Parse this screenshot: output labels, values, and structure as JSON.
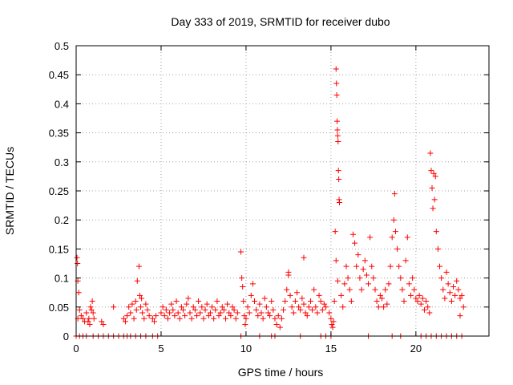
{
  "chart_data": {
    "type": "scatter",
    "title": "Day 333 of 2019, SRMTID for receiver dubo",
    "xlabel": "GPS time / hours",
    "ylabel": "SRMTID / TECUs",
    "xlim": [
      0,
      24.3
    ],
    "ylim": [
      0,
      0.5
    ],
    "grid": true,
    "marker": "plus",
    "series_color": "#ff0000",
    "x_ticks": [
      {
        "value": 0,
        "label": "0"
      },
      {
        "value": 5,
        "label": "5"
      },
      {
        "value": 10,
        "label": "10"
      },
      {
        "value": 15,
        "label": "15"
      },
      {
        "value": 20,
        "label": "20"
      }
    ],
    "y_ticks": [
      {
        "value": 0,
        "label": "0"
      },
      {
        "value": 0.05,
        "label": "0.05"
      },
      {
        "value": 0.1,
        "label": "0.1"
      },
      {
        "value": 0.15,
        "label": "0.15"
      },
      {
        "value": 0.2,
        "label": "0.2"
      },
      {
        "value": 0.25,
        "label": "0.25"
      },
      {
        "value": 0.3,
        "label": "0.3"
      },
      {
        "value": 0.35,
        "label": "0.35"
      },
      {
        "value": 0.4,
        "label": "0.4"
      },
      {
        "value": 0.45,
        "label": "0.45"
      },
      {
        "value": 0.5,
        "label": "0.5"
      }
    ],
    "series": [
      {
        "name": "SRMTID",
        "points": [
          [
            0.05,
            0.135
          ],
          [
            0.08,
            0.125
          ],
          [
            0.1,
            0.095
          ],
          [
            0.15,
            0.075
          ],
          [
            0.2,
            0.045
          ],
          [
            0.1,
            0.03
          ],
          [
            0.3,
            0.035
          ],
          [
            0.4,
            0.03
          ],
          [
            0.5,
            0.025
          ],
          [
            0.6,
            0.04
          ],
          [
            0.7,
            0.025
          ],
          [
            0.75,
            0.03
          ],
          [
            0.85,
            0.05
          ],
          [
            0.9,
            0.045
          ],
          [
            0.95,
            0.06
          ],
          [
            1.0,
            0.04
          ],
          [
            1.05,
            0.03
          ],
          [
            0.8,
            0.02
          ],
          [
            1.5,
            0.025
          ],
          [
            1.6,
            0.02
          ],
          [
            2.2,
            0.05
          ],
          [
            2.8,
            0.03
          ],
          [
            2.9,
            0.025
          ],
          [
            3.0,
            0.035
          ],
          [
            3.1,
            0.05
          ],
          [
            3.2,
            0.04
          ],
          [
            3.3,
            0.055
          ],
          [
            3.4,
            0.03
          ],
          [
            3.5,
            0.06
          ],
          [
            3.55,
            0.045
          ],
          [
            3.6,
            0.095
          ],
          [
            3.7,
            0.12
          ],
          [
            3.75,
            0.07
          ],
          [
            3.8,
            0.05
          ],
          [
            3.85,
            0.065
          ],
          [
            3.9,
            0.04
          ],
          [
            4.0,
            0.03
          ],
          [
            4.1,
            0.055
          ],
          [
            4.2,
            0.045
          ],
          [
            4.3,
            0.035
          ],
          [
            4.5,
            0.03
          ],
          [
            4.6,
            0.025
          ],
          [
            4.7,
            0.035
          ],
          [
            5.0,
            0.04
          ],
          [
            5.1,
            0.05
          ],
          [
            5.2,
            0.035
          ],
          [
            5.3,
            0.045
          ],
          [
            5.4,
            0.03
          ],
          [
            5.5,
            0.04
          ],
          [
            5.6,
            0.055
          ],
          [
            5.7,
            0.045
          ],
          [
            5.8,
            0.035
          ],
          [
            5.9,
            0.06
          ],
          [
            6.0,
            0.04
          ],
          [
            6.1,
            0.03
          ],
          [
            6.2,
            0.05
          ],
          [
            6.3,
            0.045
          ],
          [
            6.4,
            0.035
          ],
          [
            6.5,
            0.055
          ],
          [
            6.6,
            0.065
          ],
          [
            6.7,
            0.04
          ],
          [
            6.8,
            0.03
          ],
          [
            6.9,
            0.05
          ],
          [
            7.0,
            0.045
          ],
          [
            7.1,
            0.035
          ],
          [
            7.2,
            0.06
          ],
          [
            7.3,
            0.04
          ],
          [
            7.4,
            0.05
          ],
          [
            7.5,
            0.03
          ],
          [
            7.6,
            0.045
          ],
          [
            7.7,
            0.055
          ],
          [
            7.8,
            0.035
          ],
          [
            7.9,
            0.04
          ],
          [
            8.0,
            0.05
          ],
          [
            8.1,
            0.03
          ],
          [
            8.2,
            0.045
          ],
          [
            8.3,
            0.06
          ],
          [
            8.4,
            0.035
          ],
          [
            8.5,
            0.04
          ],
          [
            8.6,
            0.05
          ],
          [
            8.7,
            0.045
          ],
          [
            8.8,
            0.03
          ],
          [
            8.9,
            0.055
          ],
          [
            9.0,
            0.04
          ],
          [
            9.1,
            0.035
          ],
          [
            9.2,
            0.05
          ],
          [
            9.3,
            0.045
          ],
          [
            9.4,
            0.03
          ],
          [
            9.5,
            0.04
          ],
          [
            9.7,
            0.145
          ],
          [
            9.75,
            0.1
          ],
          [
            9.8,
            0.085
          ],
          [
            9.85,
            0.06
          ],
          [
            9.9,
            0.035
          ],
          [
            9.95,
            0.02
          ],
          [
            10.0,
            0.03
          ],
          [
            10.1,
            0.05
          ],
          [
            10.2,
            0.04
          ],
          [
            10.3,
            0.07
          ],
          [
            10.4,
            0.09
          ],
          [
            10.5,
            0.06
          ],
          [
            10.6,
            0.045
          ],
          [
            10.7,
            0.035
          ],
          [
            10.8,
            0.055
          ],
          [
            10.9,
            0.04
          ],
          [
            11.0,
            0.03
          ],
          [
            11.1,
            0.065
          ],
          [
            11.2,
            0.05
          ],
          [
            11.3,
            0.04
          ],
          [
            11.4,
            0.035
          ],
          [
            11.5,
            0.06
          ],
          [
            11.6,
            0.045
          ],
          [
            11.7,
            0.03
          ],
          [
            11.8,
            0.02
          ],
          [
            11.9,
            0.035
          ],
          [
            12.0,
            0.015
          ],
          [
            12.1,
            0.03
          ],
          [
            12.2,
            0.045
          ],
          [
            12.3,
            0.06
          ],
          [
            12.4,
            0.08
          ],
          [
            12.5,
            0.11
          ],
          [
            12.6,
            0.07
          ],
          [
            12.7,
            0.05
          ],
          [
            12.8,
            0.04
          ],
          [
            12.9,
            0.06
          ],
          [
            13.0,
            0.075
          ],
          [
            13.1,
            0.05
          ],
          [
            13.2,
            0.045
          ],
          [
            13.3,
            0.065
          ],
          [
            13.4,
            0.055
          ],
          [
            13.5,
            0.04
          ],
          [
            13.6,
            0.035
          ],
          [
            13.7,
            0.05
          ],
          [
            13.8,
            0.06
          ],
          [
            13.9,
            0.045
          ],
          [
            14.0,
            0.08
          ],
          [
            14.1,
            0.05
          ],
          [
            14.2,
            0.04
          ],
          [
            14.3,
            0.07
          ],
          [
            14.4,
            0.06
          ],
          [
            14.5,
            0.045
          ],
          [
            14.6,
            0.055
          ],
          [
            14.7,
            0.05
          ],
          [
            13.4,
            0.135
          ],
          [
            12.5,
            0.105
          ],
          [
            14.9,
            0.04
          ],
          [
            15.0,
            0.03
          ],
          [
            15.05,
            0.02
          ],
          [
            15.1,
            0.015
          ],
          [
            15.15,
            0.025
          ],
          [
            15.2,
            0.06
          ],
          [
            15.25,
            0.18
          ],
          [
            15.3,
            0.46
          ],
          [
            15.32,
            0.435
          ],
          [
            15.34,
            0.415
          ],
          [
            15.36,
            0.37
          ],
          [
            15.38,
            0.355
          ],
          [
            15.4,
            0.345
          ],
          [
            15.42,
            0.335
          ],
          [
            15.44,
            0.285
          ],
          [
            15.46,
            0.27
          ],
          [
            15.48,
            0.235
          ],
          [
            15.5,
            0.23
          ],
          [
            15.3,
            0.13
          ],
          [
            15.4,
            0.095
          ],
          [
            15.6,
            0.07
          ],
          [
            15.7,
            0.05
          ],
          [
            15.8,
            0.09
          ],
          [
            15.9,
            0.12
          ],
          [
            16.0,
            0.1
          ],
          [
            16.1,
            0.08
          ],
          [
            16.2,
            0.06
          ],
          [
            16.3,
            0.175
          ],
          [
            16.4,
            0.16
          ],
          [
            16.5,
            0.12
          ],
          [
            16.6,
            0.14
          ],
          [
            16.7,
            0.1
          ],
          [
            16.8,
            0.08
          ],
          [
            16.9,
            0.115
          ],
          [
            17.0,
            0.13
          ],
          [
            17.1,
            0.105
          ],
          [
            17.2,
            0.09
          ],
          [
            17.3,
            0.17
          ],
          [
            17.4,
            0.12
          ],
          [
            17.5,
            0.1
          ],
          [
            17.6,
            0.08
          ],
          [
            17.7,
            0.06
          ],
          [
            17.8,
            0.05
          ],
          [
            17.9,
            0.07
          ],
          [
            18.0,
            0.065
          ],
          [
            18.1,
            0.05
          ],
          [
            18.2,
            0.08
          ],
          [
            18.3,
            0.055
          ],
          [
            18.4,
            0.09
          ],
          [
            18.5,
            0.12
          ],
          [
            18.6,
            0.17
          ],
          [
            18.7,
            0.2
          ],
          [
            18.75,
            0.245
          ],
          [
            18.8,
            0.18
          ],
          [
            18.9,
            0.15
          ],
          [
            19.0,
            0.12
          ],
          [
            19.1,
            0.1
          ],
          [
            19.2,
            0.08
          ],
          [
            19.3,
            0.06
          ],
          [
            19.4,
            0.13
          ],
          [
            19.5,
            0.17
          ],
          [
            19.6,
            0.09
          ],
          [
            19.7,
            0.07
          ],
          [
            19.8,
            0.1
          ],
          [
            19.9,
            0.08
          ],
          [
            20.0,
            0.065
          ],
          [
            20.1,
            0.06
          ],
          [
            20.2,
            0.07
          ],
          [
            20.3,
            0.055
          ],
          [
            20.4,
            0.065
          ],
          [
            20.5,
            0.045
          ],
          [
            20.6,
            0.06
          ],
          [
            20.7,
            0.05
          ],
          [
            20.8,
            0.04
          ],
          [
            20.85,
            0.315
          ],
          [
            20.9,
            0.285
          ],
          [
            20.95,
            0.255
          ],
          [
            21.0,
            0.22
          ],
          [
            21.05,
            0.28
          ],
          [
            21.1,
            0.235
          ],
          [
            21.15,
            0.275
          ],
          [
            21.2,
            0.18
          ],
          [
            21.3,
            0.15
          ],
          [
            21.4,
            0.12
          ],
          [
            21.5,
            0.1
          ],
          [
            21.6,
            0.08
          ],
          [
            21.7,
            0.065
          ],
          [
            21.8,
            0.11
          ],
          [
            21.9,
            0.09
          ],
          [
            22.0,
            0.075
          ],
          [
            22.1,
            0.06
          ],
          [
            22.2,
            0.085
          ],
          [
            22.3,
            0.07
          ],
          [
            22.4,
            0.095
          ],
          [
            22.5,
            0.08
          ],
          [
            22.6,
            0.065
          ],
          [
            22.7,
            0.07
          ],
          [
            22.8,
            0.05
          ],
          [
            22.6,
            0.035
          ],
          [
            0.0,
            0
          ],
          [
            0.2,
            0
          ],
          [
            0.4,
            0
          ],
          [
            0.6,
            0
          ],
          [
            1.0,
            0
          ],
          [
            1.3,
            0
          ],
          [
            1.6,
            0
          ],
          [
            1.9,
            0
          ],
          [
            2.2,
            0
          ],
          [
            2.5,
            0
          ],
          [
            2.8,
            0
          ],
          [
            3.0,
            0
          ],
          [
            3.2,
            0
          ],
          [
            3.5,
            0
          ],
          [
            3.8,
            0
          ],
          [
            4.1,
            0
          ],
          [
            4.5,
            0
          ],
          [
            4.8,
            0
          ],
          [
            9.7,
            0
          ],
          [
            10.8,
            0
          ],
          [
            11.5,
            0
          ],
          [
            11.7,
            0
          ],
          [
            13.2,
            0
          ],
          [
            14.4,
            0
          ],
          [
            14.7,
            0
          ],
          [
            15.0,
            0
          ],
          [
            17.2,
            0
          ],
          [
            18.6,
            0
          ],
          [
            19.1,
            0
          ],
          [
            20.3,
            0
          ],
          [
            20.6,
            0
          ],
          [
            20.9,
            0
          ],
          [
            21.2,
            0
          ],
          [
            21.5,
            0
          ],
          [
            21.8,
            0
          ],
          [
            22.1,
            0
          ],
          [
            22.4,
            0
          ],
          [
            22.7,
            0
          ]
        ]
      }
    ]
  }
}
